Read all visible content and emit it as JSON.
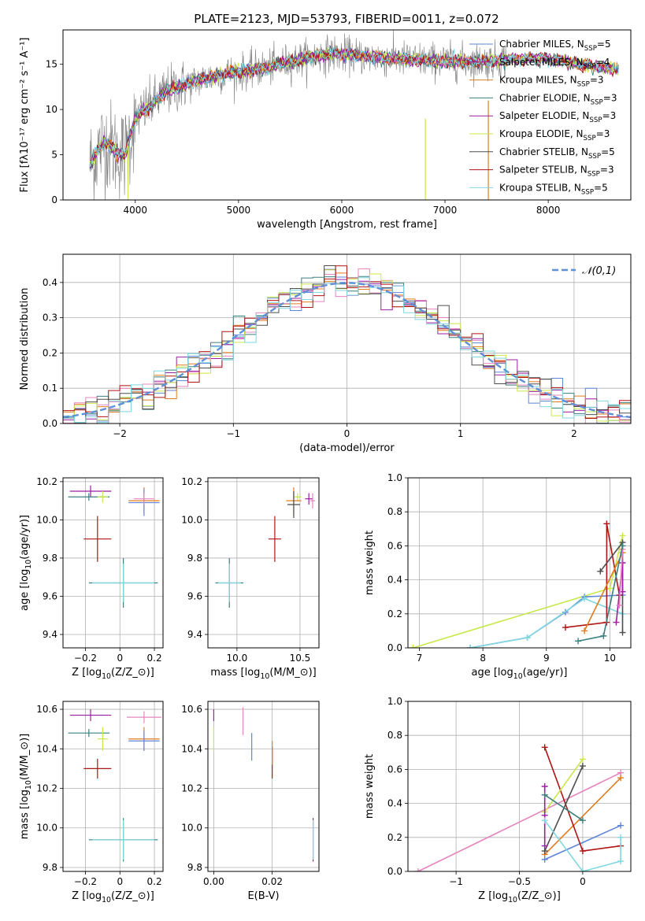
{
  "figure_title": "PLATE=2123, MJD=53793, FIBERID=0011, z=0.072",
  "colors": {
    "Chabrier MILES": "#5f85d6",
    "Salpeter MILES": "#9b1fa0",
    "Kroupa MILES": "#e07b1e",
    "Chabrier ELODIE": "#3c7f7f",
    "Salpeter ELODIE": "#9b1fa0",
    "Kroupa ELODIE": "#c8e84a",
    "Chabrier STELIB": "#4d4d4d",
    "Salpeter STELIB": "#b01515",
    "Kroupa STELIB": "#7fd8e0",
    "Pink": "#e584bf",
    "Data": "#808080",
    "Gaussian": "#5f8fd6"
  },
  "chart_data": [
    {
      "id": "spectrum",
      "type": "line",
      "xlabel": "wavelength [Angstrom, rest frame]",
      "ylabel": "Flux [fλ10⁻¹⁷ erg cm⁻² s⁻¹ A⁻¹]",
      "xlim": [
        3300,
        8800
      ],
      "ylim": [
        0,
        18.8
      ],
      "xticks": [
        4000,
        5000,
        6000,
        7000,
        8000
      ],
      "yticks": [
        0,
        5,
        10,
        15
      ],
      "legend_loc": "right",
      "legend": [
        {
          "label": "Chabrier MILES, N$_{SSP}$=5",
          "color": "#5f85d6"
        },
        {
          "label": "Salpeter MILES, N$_{SSP}$=4",
          "color": "#9b1fa0"
        },
        {
          "label": "Kroupa MILES, N$_{SSP}$=3",
          "color": "#e07b1e"
        },
        {
          "label": "Chabrier ELODIE, N$_{SSP}$=3",
          "color": "#3c7f7f"
        },
        {
          "label": "Salpeter ELODIE, N$_{SSP}$=3",
          "color": "#9b1fa0"
        },
        {
          "label": "Kroupa ELODIE, N$_{SSP}$=3",
          "color": "#c8e84a"
        },
        {
          "label": "Chabrier STELIB, N$_{SSP}$=5",
          "color": "#4d4d4d"
        },
        {
          "label": "Salpeter STELIB, N$_{SSP}$=3",
          "color": "#b01515"
        },
        {
          "label": "Kroupa STELIB, N$_{SSP}$=5",
          "color": "#7fd8e0"
        }
      ],
      "continuum": {
        "x": [
          3560,
          3700,
          3800,
          3900,
          4000,
          4100,
          4200,
          4300,
          4500,
          4700,
          4900,
          5100,
          5300,
          5500,
          5700,
          5900,
          6100,
          6300,
          6500,
          6700,
          6900,
          7100,
          7300,
          7500,
          7700,
          7900,
          8100,
          8300,
          8500,
          8700
        ],
        "y": [
          4.0,
          6.5,
          5.5,
          5.0,
          9.0,
          10.0,
          11.0,
          12.0,
          12.8,
          13.5,
          14.0,
          14.3,
          14.7,
          15.3,
          15.8,
          16.2,
          16.0,
          15.8,
          15.6,
          15.5,
          15.4,
          15.3,
          15.3,
          15.4,
          15.6,
          15.7,
          15.4,
          15.0,
          14.7,
          14.4
        ]
      },
      "data_xrange": [
        3560,
        7600
      ],
      "model_xrange": [
        3560,
        8680
      ]
    },
    {
      "id": "residual_hist",
      "type": "line",
      "xlabel": "(data-model)/error",
      "ylabel": "Normed distribution",
      "xlim": [
        -2.5,
        2.5
      ],
      "ylim": [
        0,
        0.48
      ],
      "xticks": [
        -2,
        -1,
        0,
        1,
        2
      ],
      "yticks": [
        0.0,
        0.1,
        0.2,
        0.3,
        0.4
      ],
      "legend": [
        {
          "label": "$\\mathcal{N}(0,1)$",
          "color": "#5f8fd6"
        }
      ],
      "legend_loc": "upper right",
      "bin_width": 0.1
    },
    {
      "id": "age_vs_Z",
      "type": "scatter",
      "xlabel": "Z [log$_{10}$(Z/Z$_\\odot$)]",
      "ylabel": "age  [log$_{10}$(age/yr)]",
      "xlim": [
        -0.33,
        0.25
      ],
      "ylim": [
        9.33,
        10.22
      ],
      "xticks": [
        -0.2,
        0.0,
        0.2
      ],
      "yticks": [
        9.4,
        9.6,
        9.8,
        10.0,
        10.2
      ],
      "points": [
        {
          "x": 0.02,
          "y": 9.67,
          "xerr": 0.2,
          "yerr": 0.13,
          "color": "#3c7f7f"
        },
        {
          "x": 0.02,
          "y": 9.67,
          "xerr": 0.18,
          "yerr": 0.1,
          "color": "#7fd8e0"
        },
        {
          "x": -0.17,
          "y": 10.15,
          "xerr": 0.12,
          "yerr": 0.03,
          "color": "#9b1fa0"
        },
        {
          "x": -0.18,
          "y": 10.12,
          "xerr": 0.12,
          "yerr": 0.02,
          "color": "#3c7f7f"
        },
        {
          "x": -0.1,
          "y": 10.12,
          "xerr": 0.03,
          "yerr": 0.03,
          "color": "#c8e84a"
        },
        {
          "x": 0.14,
          "y": 10.1,
          "xerr": 0.09,
          "yerr": 0.07,
          "color": "#e07b1e"
        },
        {
          "x": 0.14,
          "y": 10.09,
          "xerr": 0.09,
          "yerr": 0.07,
          "color": "#5f85d6"
        },
        {
          "x": 0.14,
          "y": 10.11,
          "xerr": 0.06,
          "yerr": 0.03,
          "color": "#e584bf"
        },
        {
          "x": -0.13,
          "y": 9.9,
          "xerr": 0.08,
          "yerr": 0.12,
          "color": "#b01515"
        }
      ]
    },
    {
      "id": "age_vs_mass",
      "type": "scatter",
      "xlabel": "mass [log$_{10}$(M/M$_\\odot$)]",
      "ylabel": "",
      "xlim": [
        9.77,
        10.65
      ],
      "ylim": [
        9.33,
        10.22
      ],
      "xticks": [
        10.0,
        10.5
      ],
      "yticks": [
        9.4,
        9.6,
        9.8,
        10.0,
        10.2
      ],
      "points": [
        {
          "x": 9.94,
          "y": 9.67,
          "xerr": 0.11,
          "yerr": 0.13,
          "color": "#3c7f7f"
        },
        {
          "x": 9.94,
          "y": 9.67,
          "xerr": 0.09,
          "yerr": 0.1,
          "color": "#7fd8e0"
        },
        {
          "x": 10.57,
          "y": 10.11,
          "xerr": 0.03,
          "yerr": 0.03,
          "color": "#9b1fa0"
        },
        {
          "x": 10.48,
          "y": 10.12,
          "xerr": 0.03,
          "yerr": 0.02,
          "color": "#c8e84a"
        },
        {
          "x": 10.45,
          "y": 10.1,
          "xerr": 0.06,
          "yerr": 0.07,
          "color": "#e07b1e"
        },
        {
          "x": 10.45,
          "y": 10.08,
          "xerr": 0.05,
          "yerr": 0.07,
          "color": "#4d4d4d"
        },
        {
          "x": 10.6,
          "y": 10.1,
          "xerr": 0.02,
          "yerr": 0.04,
          "color": "#e584bf"
        },
        {
          "x": 10.3,
          "y": 9.9,
          "xerr": 0.05,
          "yerr": 0.12,
          "color": "#b01515"
        }
      ]
    },
    {
      "id": "massweight_vs_age",
      "type": "line",
      "xlabel": "age  [log$_{10}$(age/yr)]",
      "ylabel": "mass weight",
      "xlim": [
        6.82,
        10.33
      ],
      "ylim": [
        0,
        1.0
      ],
      "xticks": [
        7,
        8,
        9,
        10
      ],
      "yticks": [
        0.0,
        0.2,
        0.4,
        0.6,
        0.8,
        1.0
      ],
      "series": [
        {
          "color": "#c8e84a",
          "x": [
            6.9,
            10.0,
            10.2
          ],
          "y": [
            0.0,
            0.35,
            0.66
          ]
        },
        {
          "color": "#5f85d6",
          "x": [
            7.8,
            8.7,
            9.3,
            9.6,
            10.2
          ],
          "y": [
            0.0,
            0.06,
            0.21,
            0.3,
            0.31
          ]
        },
        {
          "color": "#7fd8e0",
          "x": [
            7.8,
            8.7,
            9.6,
            10.2
          ],
          "y": [
            0.0,
            0.06,
            0.29,
            0.2
          ]
        },
        {
          "color": "#b01515",
          "x": [
            9.3,
            9.95,
            9.95,
            10.15
          ],
          "y": [
            0.12,
            0.15,
            0.73,
            0.31
          ]
        },
        {
          "color": "#e07b1e",
          "x": [
            9.6,
            10.2
          ],
          "y": [
            0.1,
            0.56
          ]
        },
        {
          "color": "#4d4d4d",
          "x": [
            9.85,
            10.2,
            10.2
          ],
          "y": [
            0.45,
            0.62,
            0.09
          ]
        },
        {
          "color": "#9b1fa0",
          "x": [
            10.1,
            10.2,
            10.2
          ],
          "y": [
            0.15,
            0.5,
            0.33
          ]
        },
        {
          "color": "#e584bf",
          "x": [
            10.15,
            10.2
          ],
          "y": [
            0.25,
            0.58
          ]
        },
        {
          "color": "#3c7f7f",
          "x": [
            9.5,
            9.9,
            10.2
          ],
          "y": [
            0.04,
            0.07,
            0.6
          ]
        }
      ]
    },
    {
      "id": "mass_vs_Z",
      "type": "scatter",
      "xlabel": "Z [log$_{10}$(Z/Z$_\\odot$)]",
      "ylabel": "mass [log$_{10}$(M/M$_\\odot$)]",
      "xlim": [
        -0.33,
        0.25
      ],
      "ylim": [
        9.78,
        10.64
      ],
      "xticks": [
        -0.2,
        0.0,
        0.2
      ],
      "yticks": [
        9.8,
        10.0,
        10.2,
        10.4,
        10.6
      ],
      "points": [
        {
          "x": 0.02,
          "y": 9.94,
          "xerr": 0.2,
          "yerr": 0.11,
          "color": "#3c7f7f"
        },
        {
          "x": 0.02,
          "y": 9.94,
          "xerr": 0.18,
          "yerr": 0.1,
          "color": "#7fd8e0"
        },
        {
          "x": -0.17,
          "y": 10.57,
          "xerr": 0.12,
          "yerr": 0.03,
          "color": "#9b1fa0"
        },
        {
          "x": -0.18,
          "y": 10.48,
          "xerr": 0.12,
          "yerr": 0.02,
          "color": "#3c7f7f"
        },
        {
          "x": -0.1,
          "y": 10.45,
          "xerr": 0.03,
          "yerr": 0.06,
          "color": "#c8e84a"
        },
        {
          "x": 0.14,
          "y": 10.45,
          "xerr": 0.09,
          "yerr": 0.06,
          "color": "#e07b1e"
        },
        {
          "x": 0.14,
          "y": 10.44,
          "xerr": 0.09,
          "yerr": 0.05,
          "color": "#5f85d6"
        },
        {
          "x": 0.14,
          "y": 10.56,
          "xerr": 0.1,
          "yerr": 0.03,
          "color": "#e584bf"
        },
        {
          "x": -0.13,
          "y": 10.3,
          "xerr": 0.08,
          "yerr": 0.05,
          "color": "#b01515"
        }
      ]
    },
    {
      "id": "mass_vs_EBV",
      "type": "scatter",
      "xlabel": "E(B-V)",
      "ylabel": "",
      "xlim": [
        -0.002,
        0.036
      ],
      "ylim": [
        9.78,
        10.64
      ],
      "xticks": [
        0.0,
        0.02
      ],
      "yticks": [
        9.8,
        10.0,
        10.2,
        10.4,
        10.6
      ],
      "points": [
        {
          "x": 0.0,
          "y": 10.57,
          "xerr": 0.0,
          "yerr": 0.03,
          "color": "#9b1fa0"
        },
        {
          "x": 0.0,
          "y": 10.45,
          "xerr": 0.0,
          "yerr": 0.06,
          "color": "#c8e84a"
        },
        {
          "x": 0.01,
          "y": 10.54,
          "xerr": 0.0,
          "yerr": 0.07,
          "color": "#e584bf"
        },
        {
          "x": 0.013,
          "y": 10.41,
          "xerr": 0.0,
          "yerr": 0.07,
          "color": "#5f85d6"
        },
        {
          "x": 0.02,
          "y": 10.33,
          "xerr": 0.0,
          "yerr": 0.08,
          "color": "#b01515"
        },
        {
          "x": 0.02,
          "y": 10.38,
          "xerr": 0.0,
          "yerr": 0.06,
          "color": "#e07b1e"
        },
        {
          "x": 0.034,
          "y": 9.94,
          "xerr": 0.0,
          "yerr": 0.11,
          "color": "#4d4d4d"
        },
        {
          "x": 0.034,
          "y": 9.94,
          "xerr": 0.0,
          "yerr": 0.1,
          "color": "#7fd8e0"
        }
      ]
    },
    {
      "id": "massweight_vs_Z",
      "type": "line",
      "xlabel": "Z [log$_{10}$(Z/Z$_\\odot$)]",
      "ylabel": "mass weight",
      "xlim": [
        -1.38,
        0.38
      ],
      "ylim": [
        0,
        1.0
      ],
      "xticks": [
        -1.0,
        -0.5,
        0.0
      ],
      "yticks": [
        0.0,
        0.2,
        0.4,
        0.6,
        0.8,
        1.0
      ],
      "series": [
        {
          "color": "#e584bf",
          "x": [
            -1.3,
            0.3
          ],
          "y": [
            0.0,
            0.58
          ]
        },
        {
          "color": "#e07b1e",
          "x": [
            -0.3,
            0.3
          ],
          "y": [
            0.1,
            0.55
          ]
        },
        {
          "color": "#5f85d6",
          "x": [
            -0.3,
            0.3
          ],
          "y": [
            0.07,
            0.27
          ]
        },
        {
          "color": "#b01515",
          "x": [
            -0.3,
            0.0,
            0.3
          ],
          "y": [
            0.73,
            0.12,
            0.15
          ]
        },
        {
          "color": "#c8e84a",
          "x": [
            -0.3,
            0.0
          ],
          "y": [
            0.35,
            0.66
          ]
        },
        {
          "color": "#4d4d4d",
          "x": [
            -0.3,
            0.0
          ],
          "y": [
            0.12,
            0.62
          ]
        },
        {
          "color": "#9b1fa0",
          "x": [
            -0.3,
            -0.3,
            -0.3
          ],
          "y": [
            0.5,
            0.33,
            0.15
          ]
        },
        {
          "color": "#3c7f7f",
          "x": [
            -0.3,
            0.0
          ],
          "y": [
            0.45,
            0.3
          ]
        },
        {
          "color": "#7fd8e0",
          "x": [
            -0.3,
            0.0,
            0.3,
            0.3
          ],
          "y": [
            0.3,
            0.0,
            0.06,
            0.2
          ]
        }
      ]
    }
  ]
}
